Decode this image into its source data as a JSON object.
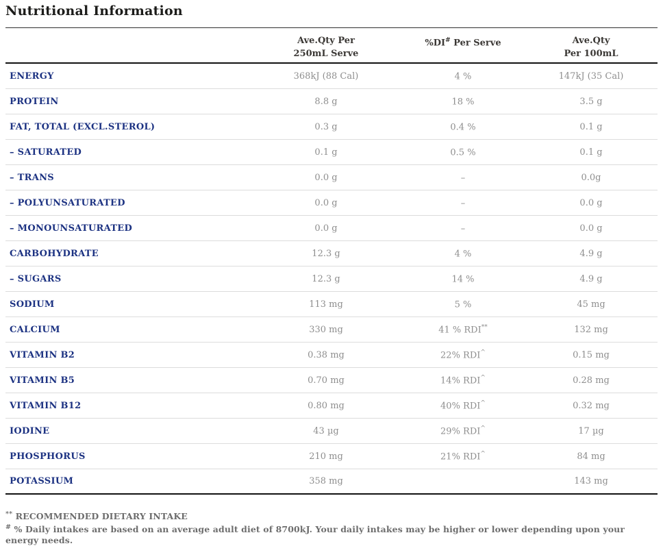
{
  "page": {
    "title": "Nutritional Information"
  },
  "table": {
    "header": {
      "col2_line1": "Ave.Qty Per",
      "col2_line2": "250mL Serve",
      "col3_prefix": "%DI",
      "col3_sup": "#",
      "col3_suffix": " Per Serve",
      "col4_line1": "Ave.Qty",
      "col4_line2": "Per 100mL"
    },
    "rows": [
      {
        "label": "ENERGY",
        "serve": "368kJ (88 Cal)",
        "di": "4 %",
        "di_sup": "",
        "per100": "147kJ (35 Cal)"
      },
      {
        "label": "PROTEIN",
        "serve": "8.8 g",
        "di": "18 %",
        "di_sup": "",
        "per100": "3.5 g"
      },
      {
        "label": "FAT, TOTAL (EXCL.STEROL)",
        "serve": "0.3 g",
        "di": "0.4 %",
        "di_sup": "",
        "per100": "0.1 g"
      },
      {
        "label": "– SATURATED",
        "serve": "0.1 g",
        "di": "0.5 %",
        "di_sup": "",
        "per100": "0.1 g"
      },
      {
        "label": "– TRANS",
        "serve": "0.0 g",
        "di": "–",
        "di_sup": "",
        "per100": "0.0g"
      },
      {
        "label": "– POLYUNSATURATED",
        "serve": "0.0 g",
        "di": "–",
        "di_sup": "",
        "per100": "0.0 g"
      },
      {
        "label": "– MONOUNSATURATED",
        "serve": "0.0 g",
        "di": "–",
        "di_sup": "",
        "per100": "0.0 g"
      },
      {
        "label": "CARBOHYDRATE",
        "serve": "12.3 g",
        "di": "4 %",
        "di_sup": "",
        "per100": "4.9 g"
      },
      {
        "label": "– SUGARS",
        "serve": "12.3 g",
        "di": "14 %",
        "di_sup": "",
        "per100": "4.9 g"
      },
      {
        "label": "SODIUM",
        "serve": "113 mg",
        "di": "5 %",
        "di_sup": "",
        "per100": "45 mg"
      },
      {
        "label": "CALCIUM",
        "serve": "330 mg",
        "di": "41 % RDI",
        "di_sup": "**",
        "per100": "132 mg"
      },
      {
        "label": "VITAMIN B2",
        "serve": "0.38 mg",
        "di": "22% RDI",
        "di_sup": "^",
        "per100": "0.15 mg"
      },
      {
        "label": "VITAMIN B5",
        "serve": "0.70 mg",
        "di": "14% RDI",
        "di_sup": "^",
        "per100": "0.28 mg"
      },
      {
        "label": "VITAMIN B12",
        "serve": "0.80 mg",
        "di": "40% RDI",
        "di_sup": "^",
        "per100": "0.32 mg"
      },
      {
        "label": "IODINE",
        "serve": "43 µg",
        "di": "29% RDI",
        "di_sup": "^",
        "per100": "17 µg"
      },
      {
        "label": "PHOSPHORUS",
        "serve": "210 mg",
        "di": "21% RDI",
        "di_sup": "^",
        "per100": "84 mg"
      },
      {
        "label": "POTASSIUM",
        "serve": "358 mg",
        "di": "",
        "di_sup": "",
        "per100": "143 mg"
      }
    ]
  },
  "footnotes": [
    {
      "marker": "**",
      "text": " RECOMMENDED DIETARY INTAKE"
    },
    {
      "marker": "#",
      "text": " % Daily intakes are based on an average adult diet of 8700kJ. Your daily intakes may be higher or lower depending upon your energy needs."
    }
  ]
}
